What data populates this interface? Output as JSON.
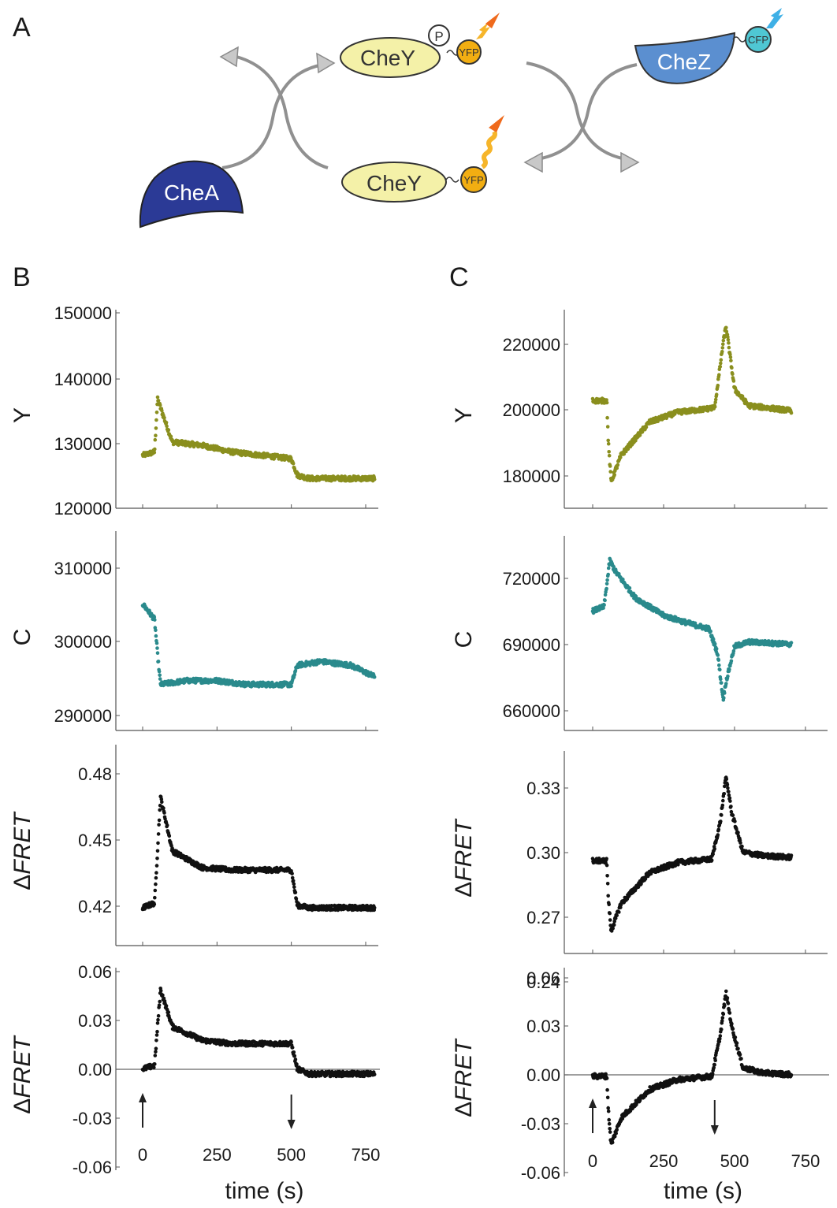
{
  "panel_labels": {
    "A": "A",
    "B": "B",
    "C": "C"
  },
  "schematic": {
    "chey_p": "CheY",
    "phospho": "P",
    "yfp_top": "YFP",
    "chez": "CheZ",
    "cfp": "CFP",
    "chea": "CheA",
    "chey": "CheY",
    "yfp_bottom": "YFP"
  },
  "colors": {
    "yfp_series": "#8a8f1e",
    "cfp_series": "#2a8a8c",
    "fret_series": "#111111",
    "chea": "#2b3a96",
    "chez": "#5b8fd0",
    "chey": "#f4f1a8"
  },
  "chart_data": [
    {
      "type": "scatter",
      "panel": "B",
      "ylabel": "Y",
      "yticks": [
        "150000",
        "140000",
        "130000",
        "120000"
      ],
      "ylim": [
        120000,
        150000
      ],
      "xlim": [
        -30,
        800
      ],
      "x": [
        0,
        40,
        50,
        100,
        200,
        300,
        400,
        500,
        520,
        560,
        600,
        700,
        780
      ],
      "y": [
        128000,
        128500,
        136500,
        130000,
        129500,
        128500,
        128000,
        127500,
        125000,
        124500,
        124500,
        124500,
        124500
      ]
    },
    {
      "type": "scatter",
      "panel": "B",
      "ylabel": "C",
      "yticks": [
        "310000",
        "300000",
        "290000"
      ],
      "ylim": [
        288000,
        314000
      ],
      "xlim": [
        -30,
        800
      ],
      "x": [
        0,
        40,
        50,
        60,
        150,
        250,
        350,
        450,
        500,
        520,
        600,
        700,
        780
      ],
      "y": [
        304500,
        302500,
        298000,
        294000,
        294500,
        294500,
        294000,
        294000,
        294000,
        296500,
        297000,
        296500,
        295000
      ]
    },
    {
      "type": "scatter",
      "panel": "B",
      "ylabel": "ΔFRET",
      "yticks": [
        "0.48",
        "0.45",
        "0.42"
      ],
      "ylim": [
        0.405,
        0.49
      ],
      "xlim": [
        -30,
        800
      ],
      "x": [
        0,
        40,
        50,
        60,
        100,
        200,
        300,
        400,
        500,
        520,
        560,
        650,
        780
      ],
      "y": [
        0.421,
        0.423,
        0.445,
        0.468,
        0.445,
        0.438,
        0.437,
        0.437,
        0.437,
        0.422,
        0.421,
        0.421,
        0.421
      ]
    },
    {
      "type": "scatter",
      "panel": "B",
      "ylabel": "ΔFRET",
      "xlabel": "time (s)",
      "yticks": [
        "0.06",
        "0.03",
        "0.00",
        "-0.03",
        "-0.06"
      ],
      "xticks": [
        "0",
        "250",
        "500",
        "750"
      ],
      "ylim": [
        -0.06,
        0.06
      ],
      "xlim": [
        -30,
        800
      ],
      "zero_line": true,
      "arrows": [
        {
          "x": 0,
          "direction": "up"
        },
        {
          "x": 500,
          "direction": "down"
        }
      ],
      "x": [
        0,
        40,
        50,
        60,
        100,
        200,
        300,
        400,
        500,
        520,
        560,
        650,
        780
      ],
      "y": [
        0.0,
        0.002,
        0.025,
        0.047,
        0.025,
        0.017,
        0.015,
        0.015,
        0.015,
        0.0,
        -0.003,
        -0.003,
        -0.003
      ]
    },
    {
      "type": "scatter",
      "panel": "C",
      "ylabel": "Y",
      "yticks": [
        "220000",
        "200000",
        "180000"
      ],
      "ylim": [
        170000,
        230000
      ],
      "xlim": [
        -20,
        800
      ],
      "x": [
        0,
        50,
        55,
        65,
        100,
        200,
        300,
        400,
        430,
        460,
        470,
        500,
        550,
        700
      ],
      "y": [
        202500,
        202500,
        190000,
        178000,
        186000,
        196000,
        199000,
        200000,
        200500,
        220000,
        225000,
        206000,
        201000,
        199500
      ]
    },
    {
      "type": "scatter",
      "panel": "C",
      "ylabel": "C",
      "yticks": [
        "720000",
        "690000",
        "660000"
      ],
      "ylim": [
        650000,
        738000
      ],
      "xlim": [
        -20,
        800
      ],
      "x": [
        0,
        40,
        50,
        60,
        80,
        150,
        250,
        350,
        410,
        440,
        460,
        470,
        500,
        550,
        700
      ],
      "y": [
        704000,
        706000,
        716000,
        727000,
        722000,
        710000,
        702000,
        698000,
        696000,
        685000,
        664000,
        672000,
        688000,
        690000,
        689000
      ]
    },
    {
      "type": "scatter",
      "panel": "C",
      "ylabel": "ΔFRET",
      "yticks": [
        "0.33",
        "0.30",
        "0.27",
        "0.24"
      ],
      "ylim": [
        0.233,
        0.351
      ],
      "xlim": [
        -20,
        800
      ],
      "x": [
        0,
        50,
        55,
        65,
        100,
        200,
        300,
        420,
        450,
        470,
        490,
        530,
        600,
        700
      ],
      "y": [
        0.287,
        0.287,
        0.265,
        0.246,
        0.262,
        0.28,
        0.286,
        0.288,
        0.31,
        0.336,
        0.315,
        0.292,
        0.29,
        0.289
      ]
    },
    {
      "type": "scatter",
      "panel": "C",
      "ylabel": "ΔFRET",
      "xlabel": "time (s)",
      "yticks": [
        "0.06",
        "0.03",
        "0.00",
        "-0.03",
        "-0.06"
      ],
      "xticks": [
        "0",
        "250",
        "500",
        "750"
      ],
      "ylim": [
        -0.06,
        0.065
      ],
      "xlim": [
        -20,
        800
      ],
      "zero_line": true,
      "arrows": [
        {
          "x": 0,
          "direction": "up"
        },
        {
          "x": 430,
          "direction": "down"
        }
      ],
      "x": [
        0,
        50,
        55,
        65,
        100,
        200,
        300,
        420,
        450,
        470,
        490,
        530,
        600,
        700
      ],
      "y": [
        0.0,
        0.0,
        -0.02,
        -0.041,
        -0.025,
        -0.008,
        -0.002,
        0.0,
        0.025,
        0.05,
        0.03,
        0.005,
        0.002,
        0.001
      ]
    }
  ]
}
